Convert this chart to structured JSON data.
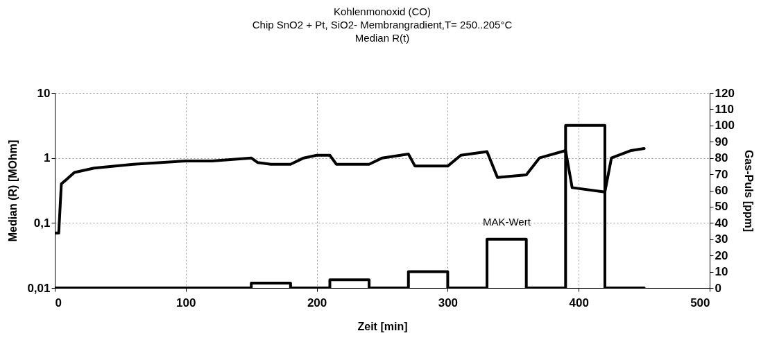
{
  "chart_data": {
    "type": "line",
    "title": "Kohlenmonoxid (CO)\nChip  SnO2 + Pt, SiO2- Membrangradient,T= 250..205°C\nMedian R(t)",
    "xlabel": "Zeit [min]",
    "ylabel": "Median (R) [MOhm]",
    "y2label": "Gas-Puls [ppm]",
    "log": "y",
    "grid": true,
    "xlim": [
      0,
      500
    ],
    "xticks": [
      0,
      100,
      200,
      300,
      400,
      500
    ],
    "ylim": [
      0.01,
      10
    ],
    "yticks": [
      {
        "value": 0.01,
        "label": "0,01"
      },
      {
        "value": 0.1,
        "label": "0,1"
      },
      {
        "value": 1,
        "label": "1"
      },
      {
        "value": 10,
        "label": "10"
      }
    ],
    "y2lim": [
      0,
      120
    ],
    "y2ticks": [
      0,
      10,
      20,
      30,
      40,
      50,
      60,
      70,
      80,
      90,
      100,
      110,
      120
    ],
    "line_style": "solid",
    "annotations": [
      "MAK-Wert"
    ],
    "series": [
      {
        "color": "#000000",
        "x": [
          0,
          3,
          5,
          8,
          15,
          30,
          60,
          100,
          120,
          150,
          155,
          165,
          180,
          190,
          200,
          210,
          215,
          240,
          250,
          270,
          275,
          300,
          310,
          330,
          338,
          360,
          370,
          390,
          395,
          420,
          425,
          440,
          450
        ],
        "values": [
          0.07,
          0.07,
          0.4,
          0.45,
          0.6,
          0.7,
          0.8,
          0.9,
          0.9,
          1.0,
          0.85,
          0.8,
          0.8,
          1.0,
          1.1,
          1.1,
          0.8,
          0.8,
          1.0,
          1.15,
          0.75,
          0.75,
          1.1,
          1.25,
          0.5,
          0.55,
          1.0,
          1.3,
          0.35,
          0.3,
          1.0,
          1.3,
          1.4
        ]
      },
      {
        "color": "#000000",
        "axis": "y2",
        "x": [
          0,
          150,
          150,
          180,
          180,
          210,
          210,
          240,
          240,
          270,
          270,
          300,
          300,
          330,
          330,
          360,
          360,
          390,
          390,
          420,
          420,
          450
        ],
        "values": [
          0,
          0,
          3,
          3,
          0,
          0,
          5,
          5,
          0,
          0,
          10,
          10,
          0,
          0,
          30,
          30,
          0,
          0,
          100,
          100,
          0,
          0
        ]
      }
    ]
  }
}
